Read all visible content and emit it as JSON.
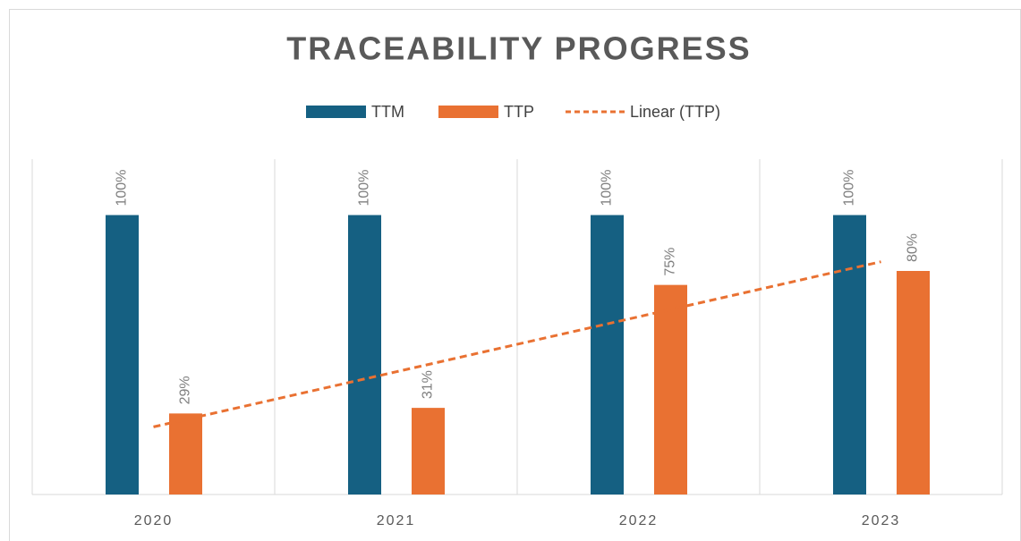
{
  "chart_data": {
    "type": "bar",
    "title": "TRACEABILITY PROGRESS",
    "categories": [
      "2020",
      "2021",
      "2022",
      "2023"
    ],
    "series": [
      {
        "name": "TTM",
        "color": "#156082",
        "values": [
          100,
          100,
          100,
          100
        ],
        "value_labels": [
          "100%",
          "100%",
          "100%",
          "100%"
        ]
      },
      {
        "name": "TTP",
        "color": "#e97132",
        "values": [
          29,
          31,
          75,
          80
        ],
        "value_labels": [
          "29%",
          "31%",
          "75%",
          "80%"
        ]
      }
    ],
    "trendline": {
      "name": "Linear (TTP)",
      "color": "#e97132",
      "values": [
        24.2,
        43.9,
        63.6,
        83.3
      ]
    },
    "ylim": [
      0,
      120
    ],
    "grid": true
  }
}
